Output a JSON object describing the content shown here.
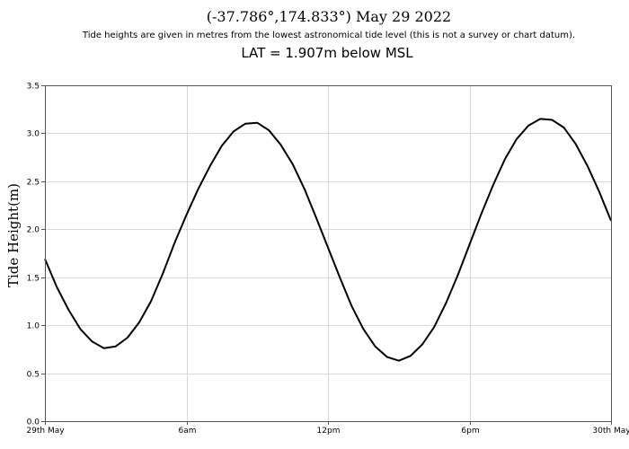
{
  "chart_data": {
    "type": "line",
    "title": "(-37.786°,174.833°)  May 29 2022",
    "subtitle": "Tide heights are given in metres from the lowest astronomical tide level (this is not a survey or chart datum).",
    "note": "LAT = 1.907m below MSL",
    "xlabel": "",
    "ylabel": "Tide Height(m)",
    "ylim": [
      0,
      3.5
    ],
    "y_ticks": [
      "0.0",
      "0.5",
      "1.0",
      "1.5",
      "2.0",
      "2.5",
      "3.0",
      "3.5"
    ],
    "xlim_hours": [
      0,
      24
    ],
    "x_ticks": [
      {
        "hour": 0,
        "label": "29th May"
      },
      {
        "hour": 6,
        "label": "6am"
      },
      {
        "hour": 12,
        "label": "12pm"
      },
      {
        "hour": 18,
        "label": "6pm"
      },
      {
        "hour": 24,
        "label": "30th May"
      }
    ],
    "grid": true,
    "series": [
      {
        "color": "#000000",
        "x": [
          0,
          0.5,
          1,
          1.5,
          2,
          2.5,
          3,
          3.5,
          4,
          4.5,
          5,
          5.5,
          6,
          6.5,
          7,
          7.5,
          8,
          8.5,
          9,
          9.5,
          10,
          10.5,
          11,
          11.5,
          12,
          12.5,
          13,
          13.5,
          14,
          14.5,
          15,
          15.5,
          16,
          16.5,
          17,
          17.5,
          18,
          18.5,
          19,
          19.5,
          20,
          20.5,
          21,
          21.5,
          22,
          22.5,
          23,
          23.5,
          24
        ],
        "y": [
          1.69,
          1.4,
          1.16,
          0.96,
          0.83,
          0.76,
          0.78,
          0.87,
          1.03,
          1.25,
          1.54,
          1.86,
          2.15,
          2.42,
          2.66,
          2.87,
          3.02,
          3.1,
          3.11,
          3.03,
          2.88,
          2.68,
          2.42,
          2.12,
          1.81,
          1.5,
          1.2,
          0.96,
          0.78,
          0.67,
          0.63,
          0.68,
          0.8,
          0.98,
          1.23,
          1.52,
          1.84,
          2.16,
          2.46,
          2.73,
          2.94,
          3.08,
          3.15,
          3.14,
          3.06,
          2.89,
          2.66,
          2.39,
          2.09
        ]
      }
    ]
  }
}
